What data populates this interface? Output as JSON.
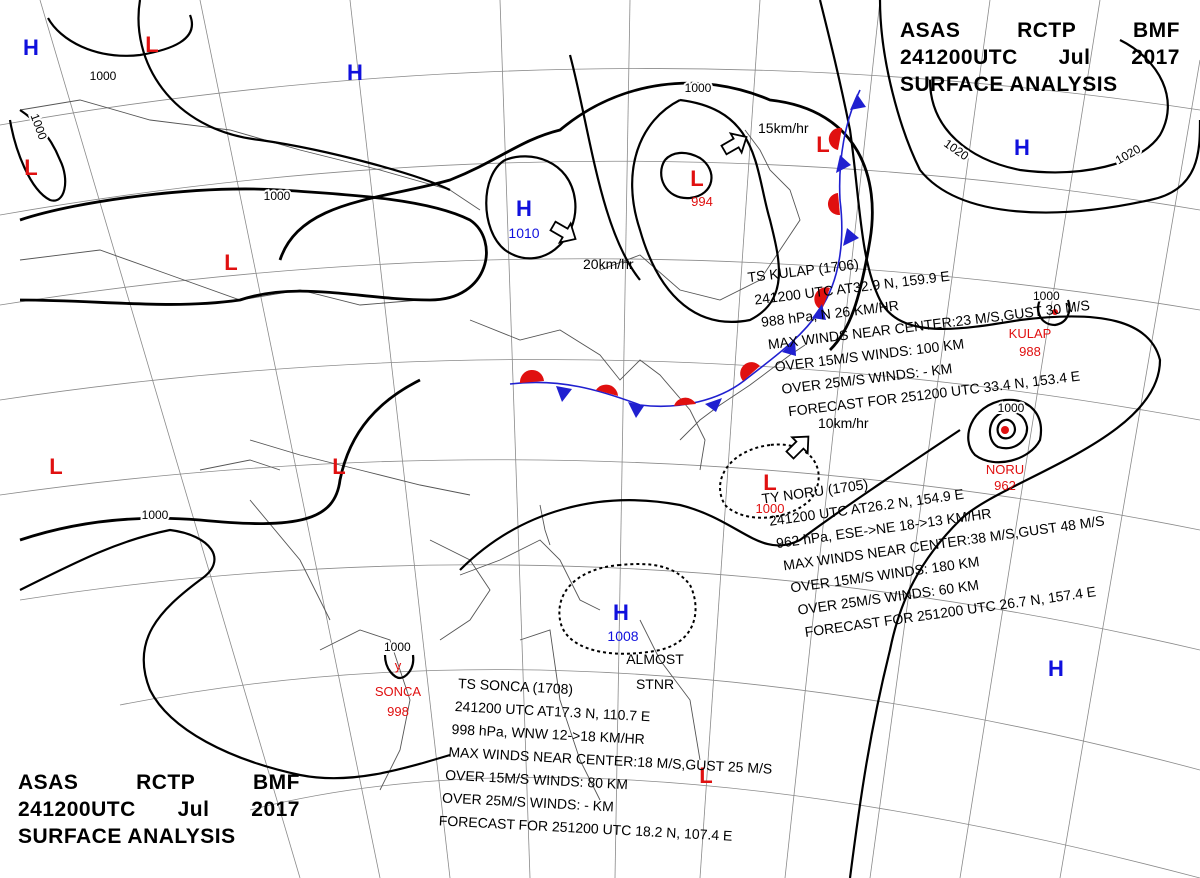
{
  "header": {
    "line1": [
      "ASAS",
      "RCTP",
      "BMF"
    ],
    "line2": [
      "241200UTC",
      "Jul",
      "2017"
    ],
    "line3": "SURFACE ANALYSIS"
  },
  "colors": {
    "high": "#1010dd",
    "low": "#e01010",
    "isobar": "#000000",
    "coast": "#555555",
    "grid": "#888888"
  },
  "isobar_labels": [
    "1000",
    "1000",
    "1000",
    "1000",
    "1020",
    "1020",
    "1000",
    "1000"
  ],
  "pressure_centers": [
    {
      "type": "H",
      "value": ""
    },
    {
      "type": "L",
      "value": ""
    },
    {
      "type": "H",
      "value": ""
    },
    {
      "type": "L",
      "value": ""
    },
    {
      "type": "H",
      "value": "1010"
    },
    {
      "type": "L",
      "value": "994"
    },
    {
      "type": "L",
      "value": ""
    },
    {
      "type": "H",
      "value": ""
    },
    {
      "type": "L",
      "value": ""
    },
    {
      "type": "L",
      "value": ""
    },
    {
      "type": "L",
      "value": "1000"
    },
    {
      "type": "H",
      "value": "1008"
    },
    {
      "type": "H",
      "value": ""
    },
    {
      "type": "L",
      "value": ""
    }
  ],
  "motions": [
    {
      "speed": "15km/hr",
      "icon": "motion-arrow-icon"
    },
    {
      "speed": "20km/hr",
      "icon": "motion-arrow-icon"
    },
    {
      "speed": "10km/hr",
      "icon": "motion-arrow-icon"
    }
  ],
  "almost_stationary": [
    "ALMOST",
    "STNR"
  ],
  "typhoon_symbols": [
    {
      "name": "KULAP",
      "pressure": "988",
      "isobar": "1000"
    },
    {
      "name": "NORU",
      "pressure": "962",
      "isobar": "1000"
    },
    {
      "name": "SONCA",
      "pressure": "998",
      "isobar": "1000",
      "marker": "y"
    }
  ],
  "storms": {
    "kulap": [
      "TS  KULAP  (1706)",
      "241200 UTC  AT32.9 N, 159.9 E",
      "988 hPa, N  26 KM/HR",
      "MAX WINDS NEAR CENTER:23 M/S,GUST 30 M/S",
      "OVER 15M/S WINDS: 100 KM",
      "OVER 25M/S WINDS: - KM",
      "FORECAST FOR 251200 UTC 33.4 N, 153.4 E"
    ],
    "noru": [
      "TY  NORU  (1705)",
      "241200 UTC  AT26.2 N, 154.9 E",
      "962 hPa, ESE->NE  18->13 KM/HR",
      "MAX WINDS NEAR CENTER:38 M/S,GUST 48 M/S",
      "OVER 15M/S WINDS: 180 KM",
      "OVER 25M/S WINDS: 60 KM",
      "FORECAST FOR 251200 UTC 26.7 N, 157.4 E"
    ],
    "sonca": [
      "TS  SONCA  (1708)",
      "241200 UTC  AT17.3 N,  110.7 E",
      "998 hPa, WNW  12->18 KM/HR",
      "MAX WINDS NEAR CENTER:18 M/S,GUST 25 M/S",
      "OVER 15M/S WINDS: 80 KM",
      "OVER 25M/S WINDS: - KM",
      "FORECAST FOR 251200 UTC 18.2 N, 107.4 E"
    ]
  }
}
